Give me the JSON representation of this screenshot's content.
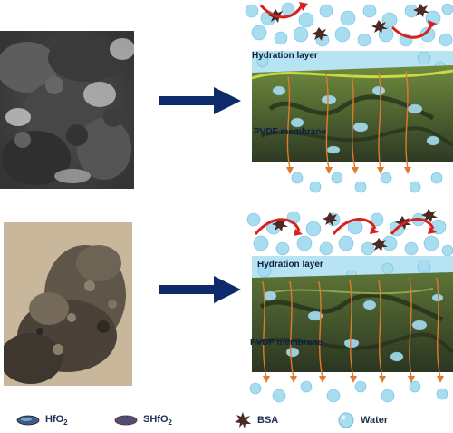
{
  "panels": {
    "top": {
      "hydration_label": "Hydration layer",
      "membrane_label": "PVDF membrane"
    },
    "bottom": {
      "hydration_label": "Hydration layer",
      "membrane_label": "PVDF membrane"
    }
  },
  "legend": {
    "hfo2": {
      "base": "HfO",
      "sub": "2"
    },
    "shfo2": {
      "base": "SHfO",
      "sub": "2"
    },
    "bsa": "BSA",
    "water": "Water"
  },
  "colors": {
    "arrow": "#0d2a6b",
    "water": "#9fd6ec",
    "bsa": "#4a2a22",
    "flow": "#e07a2c",
    "recycle": "#d8201e",
    "membrane": "#4e6433"
  }
}
